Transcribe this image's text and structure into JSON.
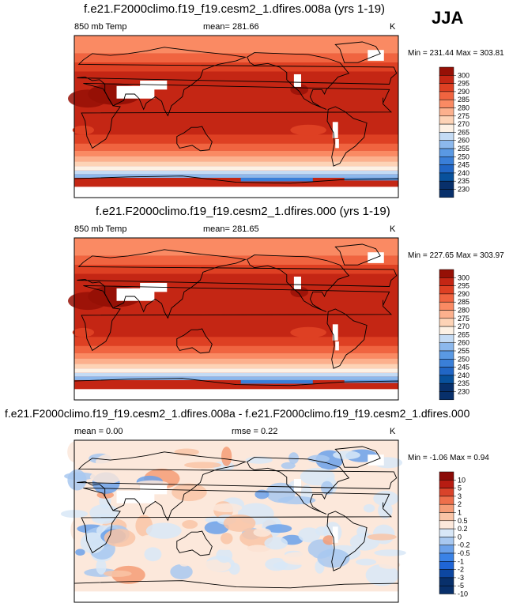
{
  "season": "JJA",
  "colors": {
    "temp_scale": [
      "#08306b",
      "#08519c",
      "#2166c5",
      "#3a7fd8",
      "#5a99e3",
      "#8cb8ec",
      "#c4dbf4",
      "#fdf1e4",
      "#fdd3b6",
      "#fcb08d",
      "#fa8a63",
      "#f06440",
      "#de4023",
      "#c42614",
      "#961006"
    ],
    "diff_scale": [
      "#08306b",
      "#0d47a1",
      "#1f65d6",
      "#3a82e6",
      "#6ba1ea",
      "#a8c8f0",
      "#d8e7f7",
      "#fce8db",
      "#f9c4a6",
      "#f59c76",
      "#ee6f4b",
      "#d9432a",
      "#b71c12",
      "#8b0a07"
    ],
    "land_line": "#000000",
    "mask": "#ffffff"
  },
  "chart_data": [
    {
      "type": "heatmap",
      "title": "f.e21.F2000climo.f19_f19.cesm2_1.dfires.008a (yrs 1-19)",
      "variable_label": "850 mb Temp",
      "mean_text": "mean= 281.66",
      "units": "K",
      "min_max_text": "Min = 231.44 Max = 303.81",
      "min": 231.44,
      "max": 303.81,
      "mean": 281.66,
      "colorbar_labels": [
        "300",
        "295",
        "290",
        "285",
        "280",
        "275",
        "270",
        "265",
        "260",
        "255",
        "250",
        "245",
        "240",
        "235",
        "230"
      ]
    },
    {
      "type": "heatmap",
      "title": "f.e21.F2000climo.f19_f19.cesm2_1.dfires.000 (yrs 1-19)",
      "variable_label": "850 mb Temp",
      "mean_text": "mean= 281.65",
      "units": "K",
      "min_max_text": "Min = 227.65 Max = 303.97",
      "min": 227.65,
      "max": 303.97,
      "mean": 281.65,
      "colorbar_labels": [
        "300",
        "295",
        "290",
        "285",
        "280",
        "275",
        "270",
        "265",
        "260",
        "255",
        "250",
        "245",
        "240",
        "235",
        "230"
      ]
    },
    {
      "type": "heatmap",
      "title": "f.e21.F2000climo.f19_f19.cesm2_1.dfires.008a - f.e21.F2000climo.f19_f19.cesm2_1.dfires.000",
      "mean_text": "mean =   0.00",
      "rmse_text": "rmse =   0.22",
      "units": "K",
      "min_max_text": "Min =  -1.06 Max =   0.94",
      "min": -1.06,
      "max": 0.94,
      "mean": 0.0,
      "rmse": 0.22,
      "colorbar_labels": [
        "10",
        "5",
        "3",
        "2",
        "1",
        "0.5",
        "0.2",
        "0",
        "-0.2",
        "-0.5",
        "-1",
        "-2",
        "-3",
        "-5",
        "-10"
      ]
    }
  ]
}
